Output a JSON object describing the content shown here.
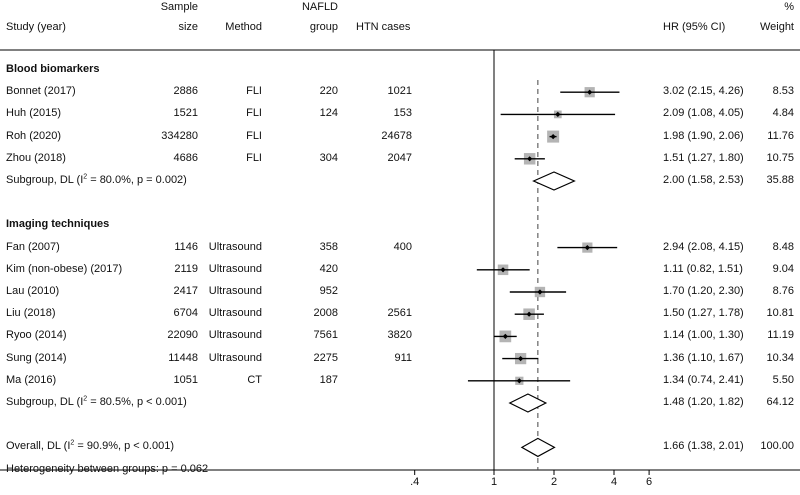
{
  "headers": {
    "study": "Study (year)",
    "sample_1": "Sample",
    "sample_2": "size",
    "method": "Method",
    "nafld_1": "NAFLD",
    "nafld_2": "group",
    "htn": "HTN cases",
    "hr": "HR (95% CI)",
    "weight_1": "%",
    "weight_2": "Weight"
  },
  "chart_data": {
    "type": "forest",
    "x_scale": "log",
    "x_ticks": [
      0.4,
      1,
      2,
      4,
      6
    ],
    "x_tick_labels": [
      ".4",
      "1",
      "2",
      "4",
      "6"
    ],
    "null_line": 1,
    "overall_line": 1.66,
    "rows": [
      {
        "kind": "group",
        "label": "Blood biomarkers"
      },
      {
        "kind": "study",
        "label": "Bonnet (2017)",
        "size": "2886",
        "method": "FLI",
        "nafld": "220",
        "htn": "1021",
        "hr": 3.02,
        "lo": 2.15,
        "hi": 4.26,
        "ci_text": "3.02 (2.15, 4.26)",
        "weight": "8.53"
      },
      {
        "kind": "study",
        "label": "Huh (2015)",
        "size": "1521",
        "method": "FLI",
        "nafld": "124",
        "htn": "153",
        "hr": 2.09,
        "lo": 1.08,
        "hi": 4.05,
        "ci_text": "2.09 (1.08, 4.05)",
        "weight": "4.84"
      },
      {
        "kind": "study",
        "label": "Roh (2020)",
        "size": "334280",
        "method": "FLI",
        "nafld": "",
        "htn": "24678",
        "hr": 1.98,
        "lo": 1.9,
        "hi": 2.06,
        "ci_text": "1.98 (1.90, 2.06)",
        "weight": "11.76"
      },
      {
        "kind": "study",
        "label": "Zhou (2018)",
        "size": "4686",
        "method": "FLI",
        "nafld": "304",
        "htn": "2047",
        "hr": 1.51,
        "lo": 1.27,
        "hi": 1.8,
        "ci_text": "1.51 (1.27, 1.80)",
        "weight": "10.75"
      },
      {
        "kind": "subgroup",
        "label_pre": "Subgroup, DL (I",
        "label_sup": "2",
        "label_post": " = 80.0%, p = 0.002)",
        "hr": 2.0,
        "lo": 1.58,
        "hi": 2.53,
        "ci_text": "2.00 (1.58, 2.53)",
        "weight": "35.88"
      },
      {
        "kind": "blank"
      },
      {
        "kind": "group",
        "label": "Imaging techniques"
      },
      {
        "kind": "study",
        "label": "Fan (2007)",
        "size": "1146",
        "method": "Ultrasound",
        "nafld": "358",
        "htn": "400",
        "hr": 2.94,
        "lo": 2.08,
        "hi": 4.15,
        "ci_text": "2.94 (2.08, 4.15)",
        "weight": "8.48"
      },
      {
        "kind": "study",
        "label": "Kim (non-obese) (2017)",
        "size": "2119",
        "method": "Ultrasound",
        "nafld": "420",
        "htn": "",
        "hr": 1.11,
        "lo": 0.82,
        "hi": 1.51,
        "ci_text": "1.11 (0.82, 1.51)",
        "weight": "9.04"
      },
      {
        "kind": "study",
        "label": "Lau (2010)",
        "size": "2417",
        "method": "Ultrasound",
        "nafld": "952",
        "htn": "",
        "hr": 1.7,
        "lo": 1.2,
        "hi": 2.3,
        "ci_text": "1.70 (1.20, 2.30)",
        "weight": "8.76"
      },
      {
        "kind": "study",
        "label": "Liu (2018)",
        "size": "6704",
        "method": "Ultrasound",
        "nafld": "2008",
        "htn": "2561",
        "hr": 1.5,
        "lo": 1.27,
        "hi": 1.78,
        "ci_text": "1.50 (1.27, 1.78)",
        "weight": "10.81"
      },
      {
        "kind": "study",
        "label": "Ryoo (2014)",
        "size": "22090",
        "method": "Ultrasound",
        "nafld": "7561",
        "htn": "3820",
        "hr": 1.14,
        "lo": 1.0,
        "hi": 1.3,
        "ci_text": "1.14 (1.00, 1.30)",
        "weight": "11.19"
      },
      {
        "kind": "study",
        "label": "Sung (2014)",
        "size": "11448",
        "method": "Ultrasound",
        "nafld": "2275",
        "htn": "911",
        "hr": 1.36,
        "lo": 1.1,
        "hi": 1.67,
        "ci_text": "1.36 (1.10, 1.67)",
        "weight": "10.34"
      },
      {
        "kind": "study",
        "label": "Ma (2016)",
        "size": "1051",
        "method": "CT",
        "nafld": "187",
        "htn": "",
        "hr": 1.34,
        "lo": 0.74,
        "hi": 2.41,
        "ci_text": "1.34 (0.74, 2.41)",
        "weight": "5.50"
      },
      {
        "kind": "subgroup",
        "label_pre": "Subgroup, DL (I",
        "label_sup": "2",
        "label_post": " = 80.5%, p < 0.001)",
        "hr": 1.48,
        "lo": 1.2,
        "hi": 1.82,
        "ci_text": "1.48 (1.20, 1.82)",
        "weight": "64.12"
      },
      {
        "kind": "blank"
      },
      {
        "kind": "overall",
        "label_pre": "Overall, DL (I",
        "label_sup": "2",
        "label_post": " = 90.9%, p < 0.001)",
        "hr": 1.66,
        "lo": 1.38,
        "hi": 2.01,
        "ci_text": "1.66 (1.38, 2.01)",
        "weight": "100.00"
      },
      {
        "kind": "note",
        "label": "Heterogeneity between groups: p = 0.062"
      }
    ]
  }
}
